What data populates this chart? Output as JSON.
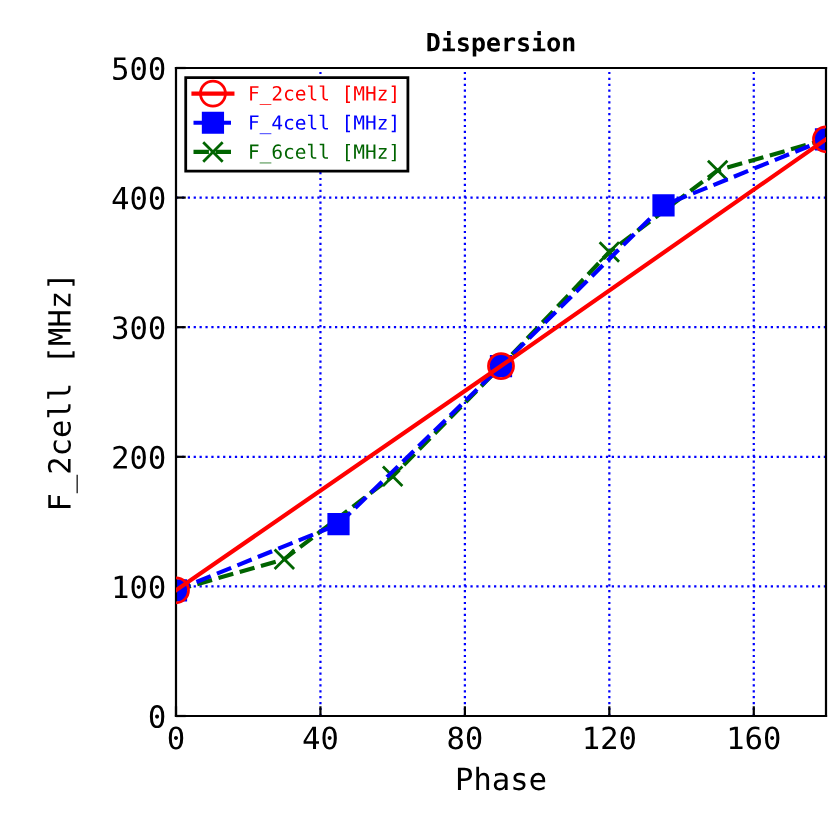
{
  "chart_data": {
    "type": "line",
    "title": "Dispersion",
    "xlabel": "Phase",
    "ylabel": "F_2cell [MHz]",
    "xlim": [
      0,
      180
    ],
    "xticks": [
      0,
      40,
      80,
      120,
      160
    ],
    "ylim": [
      0,
      500
    ],
    "yticks": [
      0,
      100,
      200,
      300,
      400,
      500
    ],
    "grid": true,
    "legend": "top left",
    "series": [
      {
        "name": "F_2cell [MHz]",
        "color": "#ff0000",
        "marker": "circle",
        "line_style": "solid",
        "x": [
          0,
          90,
          180
        ],
        "values": [
          97,
          270,
          445
        ]
      },
      {
        "name": "F_4cell [MHz]",
        "color": "#0000ff",
        "marker": "square",
        "line_style": "dashed",
        "x": [
          0,
          45,
          90,
          135,
          180
        ],
        "values": [
          97,
          148,
          270,
          394,
          445
        ]
      },
      {
        "name": "F_6cell [MHz]",
        "color": "#006400",
        "marker": "cross",
        "line_style": "dashed",
        "x": [
          0,
          30,
          60,
          90,
          120,
          150,
          180
        ],
        "values": [
          97,
          121,
          185,
          270,
          358,
          421,
          445
        ]
      }
    ]
  }
}
